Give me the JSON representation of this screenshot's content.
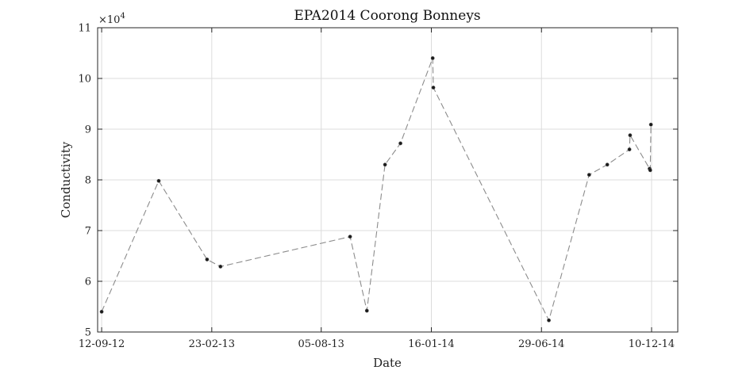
{
  "chart_data": {
    "type": "line",
    "title": "EPA2014 Coorong Bonneys",
    "xlabel": "Date",
    "ylabel": "Conductivity",
    "y_exponent_base": "×10",
    "y_exponent_power": "4",
    "x_axis_type": "date",
    "xlim": [
      "2012-09-06",
      "2015-01-18"
    ],
    "ylim": [
      50000,
      110000
    ],
    "x_ticks": [
      "2012-09-12",
      "2013-02-23",
      "2013-08-05",
      "2014-01-16",
      "2014-06-29",
      "2014-12-10"
    ],
    "x_tick_labels": [
      "12-09-12",
      "23-02-13",
      "05-08-13",
      "16-01-14",
      "29-06-14",
      "10-12-14"
    ],
    "y_ticks": [
      50000,
      60000,
      70000,
      80000,
      90000,
      100000,
      110000
    ],
    "y_tick_labels": [
      "5",
      "6",
      "7",
      "8",
      "9",
      "10",
      "11"
    ],
    "grid": true,
    "line_style": "dashed",
    "colors": {
      "line": "#8c8c8c",
      "marker": "#1a1a1a",
      "grid": "#dcdcdc",
      "axes": "#262626"
    },
    "series": [
      {
        "points": [
          {
            "x": "2012-09-12",
            "y": 54000
          },
          {
            "x": "2012-12-06",
            "y": 79800
          },
          {
            "x": "2013-02-16",
            "y": 64300
          },
          {
            "x": "2013-03-08",
            "y": 62900
          },
          {
            "x": "2013-09-17",
            "y": 68800
          },
          {
            "x": "2013-10-12",
            "y": 54200
          },
          {
            "x": "2013-11-08",
            "y": 83000
          },
          {
            "x": "2013-12-01",
            "y": 87200
          },
          {
            "x": "2014-01-18",
            "y": 104000
          },
          {
            "x": "2014-01-19",
            "y": 98200
          },
          {
            "x": "2014-07-10",
            "y": 52300
          },
          {
            "x": "2014-09-08",
            "y": 81000
          },
          {
            "x": "2014-10-05",
            "y": 83000
          },
          {
            "x": "2014-11-07",
            "y": 86000
          },
          {
            "x": "2014-11-08",
            "y": 88800
          },
          {
            "x": "2014-12-07",
            "y": 82200
          },
          {
            "x": "2014-12-08",
            "y": 81900
          },
          {
            "x": "2014-12-09",
            "y": 90900
          }
        ]
      }
    ]
  }
}
